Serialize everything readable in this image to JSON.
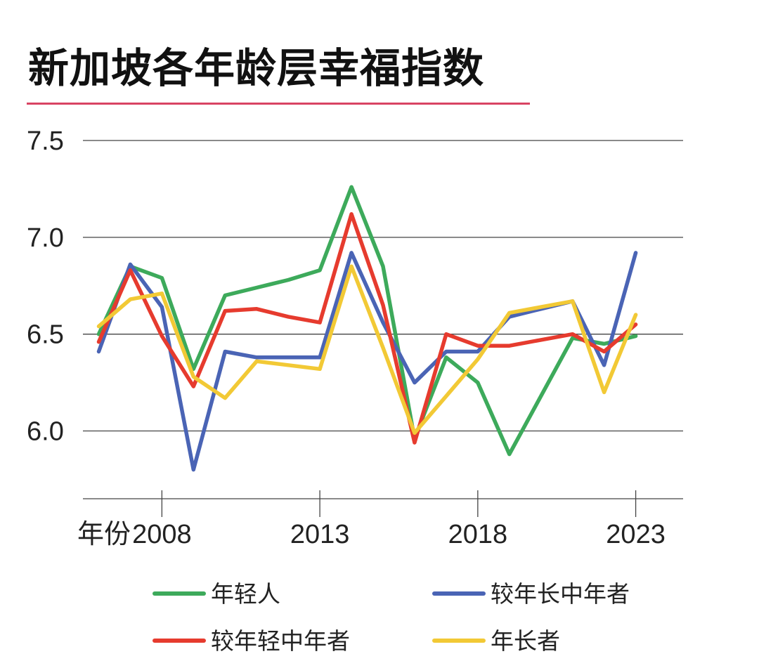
{
  "title": "新加坡各年龄层幸福指数",
  "colors": {
    "title_rule": "#d94463",
    "grid": "#444444"
  },
  "chart_data": {
    "type": "line",
    "title": "新加坡各年龄层幸福指数",
    "xlabel": "年份",
    "ylabel": "",
    "x": [
      2006,
      2007,
      2008,
      2009,
      2010,
      2011,
      2012,
      2013,
      2014,
      2015,
      2016,
      2017,
      2018,
      2019,
      2020,
      2021,
      2022,
      2023
    ],
    "xticks": [
      2008,
      2013,
      2018,
      2023
    ],
    "xlim": [
      2005.5,
      2024.5
    ],
    "yticks": [
      6.0,
      6.5,
      7.0,
      7.5
    ],
    "ylim": [
      5.65,
      7.5
    ],
    "grid": true,
    "legend_position": "bottom",
    "series": [
      {
        "name": "年轻人",
        "color": "#3daa5b",
        "values": [
          6.5,
          6.85,
          6.79,
          6.32,
          6.7,
          6.74,
          6.78,
          6.83,
          7.26,
          6.85,
          5.96,
          6.38,
          6.25,
          5.88,
          6.18,
          6.48,
          6.45,
          6.49
        ]
      },
      {
        "name": "较年长中年者",
        "color": "#4a64b5",
        "values": [
          6.41,
          6.86,
          6.64,
          5.8,
          6.41,
          6.38,
          6.38,
          6.38,
          6.92,
          6.56,
          6.25,
          6.41,
          6.41,
          6.59,
          6.63,
          6.67,
          6.34,
          6.92
        ]
      },
      {
        "name": "较年轻中年者",
        "color": "#e63b2e",
        "values": [
          6.46,
          6.83,
          6.49,
          6.23,
          6.62,
          6.63,
          6.59,
          6.56,
          7.12,
          6.65,
          5.94,
          6.5,
          6.44,
          6.44,
          6.47,
          6.5,
          6.41,
          6.55
        ]
      },
      {
        "name": "年长者",
        "color": "#f2c935",
        "values": [
          6.54,
          6.68,
          6.71,
          6.28,
          6.17,
          6.36,
          6.34,
          6.32,
          6.85,
          6.43,
          5.99,
          6.18,
          6.37,
          6.61,
          6.64,
          6.67,
          6.2,
          6.6
        ]
      }
    ]
  }
}
